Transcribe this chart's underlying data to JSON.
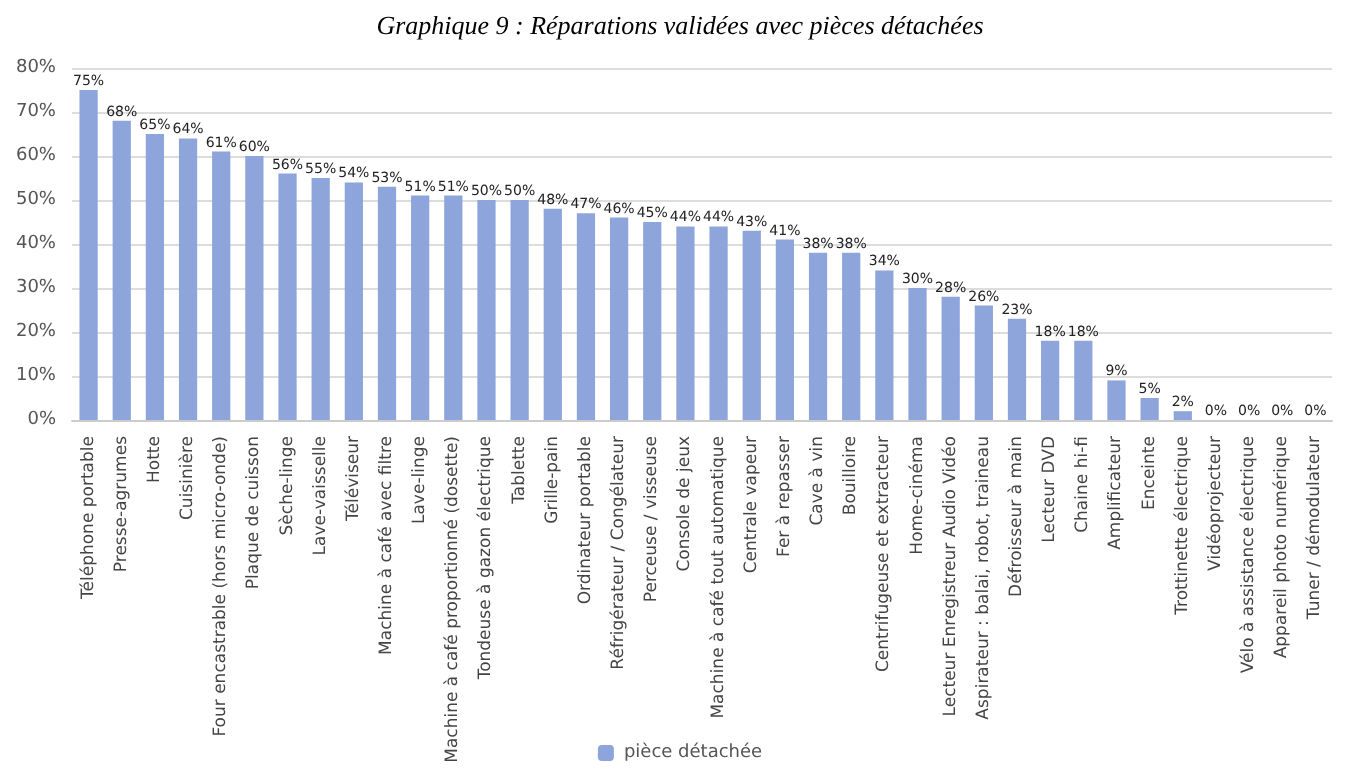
{
  "chart_data": {
    "type": "bar",
    "title": "Graphique 9 : Réparations validées avec pièces détachées",
    "categories": [
      "Téléphone portable",
      "Presse-agrumes",
      "Hotte",
      "Cuisinière",
      "Four encastrable (hors micro-onde)",
      "Plaque de cuisson",
      "Sèche-linge",
      "Lave-vaisselle",
      "Téléviseur",
      "Machine à café avec filtre",
      "Lave-linge",
      "Machine à café proportionné (dosette)",
      "Tondeuse à gazon électrique",
      "Tablette",
      "Grille-pain",
      "Ordinateur portable",
      "Réfrigérateur / Congélateur",
      "Perceuse / visseuse",
      "Console de jeux",
      "Machine à café tout automatique",
      "Centrale vapeur",
      "Fer à repasser",
      "Cave à vin",
      "Bouilloire",
      "Centrifugeuse et extracteur",
      "Home-cinéma",
      "Lecteur Enregistreur Audio Vidéo",
      "Aspirateur : balai, robot, traineau",
      "Défroisseur à main",
      "Lecteur DVD",
      "Chaine hi-fi",
      "Amplificateur",
      "Enceinte",
      "Trottinette électrique",
      "Vidéoprojecteur",
      "Vélo à assistance électrique",
      "Appareil photo numérique",
      "Tuner / démodulateur"
    ],
    "series": [
      {
        "name": "pièce détachée",
        "color": "#8ea5dc",
        "values": [
          75,
          68,
          65,
          64,
          61,
          60,
          56,
          55,
          54,
          53,
          51,
          51,
          50,
          50,
          48,
          47,
          46,
          45,
          44,
          44,
          43,
          41,
          38,
          38,
          34,
          30,
          28,
          26,
          23,
          18,
          18,
          9,
          5,
          2,
          0,
          0,
          0,
          0
        ],
        "value_labels": [
          "75%",
          "68%",
          "65%",
          "64%",
          "61%",
          "60%",
          "56%",
          "55%",
          "54%",
          "53%",
          "51%",
          "51%",
          "50%",
          "50%",
          "48%",
          "47%",
          "46%",
          "45%",
          "44%",
          "44%",
          "43%",
          "41%",
          "38%",
          "38%",
          "34%",
          "30%",
          "28%",
          "26%",
          "23%",
          "18%",
          "18%",
          "9%",
          "5%",
          "2%",
          "0%",
          "0%",
          "0%",
          "0%"
        ]
      }
    ],
    "ylim": [
      0,
      80
    ],
    "yticks": [
      {
        "value": 0,
        "label": "0%"
      },
      {
        "value": 10,
        "label": "10%"
      },
      {
        "value": 20,
        "label": "20%"
      },
      {
        "value": 30,
        "label": "30%"
      },
      {
        "value": 40,
        "label": "40%"
      },
      {
        "value": 50,
        "label": "50%"
      },
      {
        "value": 60,
        "label": "60%"
      },
      {
        "value": 70,
        "label": "70%"
      },
      {
        "value": 80,
        "label": "80%"
      }
    ],
    "grid": "y",
    "legend": "bottom"
  }
}
